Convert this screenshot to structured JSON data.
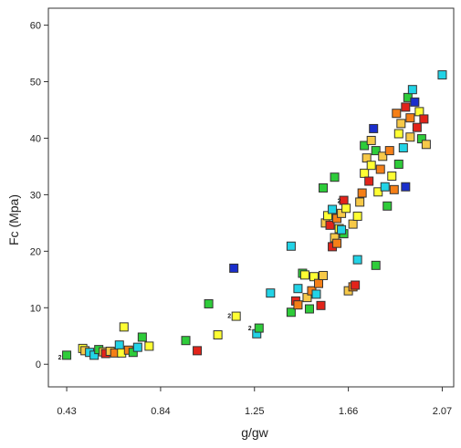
{
  "chart_data": {
    "type": "scatter",
    "xlabel": "g/gw",
    "ylabel": "Fc (Mpa)",
    "xlim": [
      0.35,
      2.12
    ],
    "ylim": [
      -4,
      63
    ],
    "xticks": [
      "0.43",
      "0.84",
      "1.25",
      "1.66",
      "2.07"
    ],
    "yticks": [
      "0",
      "10",
      "20",
      "30",
      "40",
      "50",
      "60"
    ],
    "grid": false,
    "legend": "none",
    "color_scale": [
      "#1a2ecc",
      "#22d3e6",
      "#2ecc3a",
      "#ffff33",
      "#f7c948",
      "#f57f17",
      "#e2231a"
    ],
    "points": [
      {
        "x": 0.43,
        "y": 1.6,
        "c": 2
      },
      {
        "x": 0.5,
        "y": 2.8,
        "c": 3
      },
      {
        "x": 0.51,
        "y": 2.4,
        "c": 4
      },
      {
        "x": 0.53,
        "y": 2.1,
        "c": 1
      },
      {
        "x": 0.55,
        "y": 1.6,
        "c": 1
      },
      {
        "x": 0.57,
        "y": 2.6,
        "c": 2
      },
      {
        "x": 0.59,
        "y": 2.2,
        "c": 4
      },
      {
        "x": 0.6,
        "y": 1.9,
        "c": 6
      },
      {
        "x": 0.62,
        "y": 2.3,
        "c": 4
      },
      {
        "x": 0.64,
        "y": 2.0,
        "c": 5
      },
      {
        "x": 0.66,
        "y": 3.4,
        "c": 1
      },
      {
        "x": 0.67,
        "y": 2.0,
        "c": 3
      },
      {
        "x": 0.68,
        "y": 6.6,
        "c": 3
      },
      {
        "x": 0.7,
        "y": 2.5,
        "c": 5
      },
      {
        "x": 0.72,
        "y": 2.1,
        "c": 2
      },
      {
        "x": 0.74,
        "y": 3.0,
        "c": 1
      },
      {
        "x": 0.76,
        "y": 4.8,
        "c": 2
      },
      {
        "x": 0.79,
        "y": 3.2,
        "c": 3
      },
      {
        "x": 0.95,
        "y": 4.2,
        "c": 2
      },
      {
        "x": 1.0,
        "y": 2.4,
        "c": 6
      },
      {
        "x": 1.05,
        "y": 10.7,
        "c": 2
      },
      {
        "x": 1.09,
        "y": 5.2,
        "c": 3
      },
      {
        "x": 1.16,
        "y": 17.0,
        "c": 0
      },
      {
        "x": 1.17,
        "y": 8.5,
        "c": 3
      },
      {
        "x": 1.26,
        "y": 5.4,
        "c": 1
      },
      {
        "x": 1.27,
        "y": 6.4,
        "c": 2
      },
      {
        "x": 1.32,
        "y": 12.6,
        "c": 1
      },
      {
        "x": 1.41,
        "y": 20.9,
        "c": 1
      },
      {
        "x": 1.41,
        "y": 9.2,
        "c": 2
      },
      {
        "x": 1.43,
        "y": 11.2,
        "c": 6
      },
      {
        "x": 1.44,
        "y": 13.4,
        "c": 1
      },
      {
        "x": 1.44,
        "y": 10.5,
        "c": 5
      },
      {
        "x": 1.46,
        "y": 16.1,
        "c": 2
      },
      {
        "x": 1.47,
        "y": 15.8,
        "c": 3
      },
      {
        "x": 1.48,
        "y": 11.8,
        "c": 4
      },
      {
        "x": 1.49,
        "y": 9.8,
        "c": 2
      },
      {
        "x": 1.5,
        "y": 13.0,
        "c": 5
      },
      {
        "x": 1.51,
        "y": 15.5,
        "c": 3
      },
      {
        "x": 1.52,
        "y": 12.4,
        "c": 1
      },
      {
        "x": 1.53,
        "y": 14.3,
        "c": 5
      },
      {
        "x": 1.54,
        "y": 10.4,
        "c": 6
      },
      {
        "x": 1.55,
        "y": 31.2,
        "c": 2
      },
      {
        "x": 1.55,
        "y": 15.7,
        "c": 4
      },
      {
        "x": 1.56,
        "y": 25.0,
        "c": 4
      },
      {
        "x": 1.57,
        "y": 26.3,
        "c": 3
      },
      {
        "x": 1.58,
        "y": 24.6,
        "c": 6
      },
      {
        "x": 1.59,
        "y": 27.4,
        "c": 1
      },
      {
        "x": 1.6,
        "y": 33.1,
        "c": 2
      },
      {
        "x": 1.6,
        "y": 22.4,
        "c": 4
      },
      {
        "x": 1.61,
        "y": 25.8,
        "c": 5
      },
      {
        "x": 1.62,
        "y": 24.0,
        "c": 3
      },
      {
        "x": 1.63,
        "y": 26.7,
        "c": 4
      },
      {
        "x": 1.64,
        "y": 29.0,
        "c": 6
      },
      {
        "x": 1.64,
        "y": 23.1,
        "c": 2
      },
      {
        "x": 1.65,
        "y": 27.6,
        "c": 3
      },
      {
        "x": 1.59,
        "y": 20.8,
        "c": 6
      },
      {
        "x": 1.61,
        "y": 21.4,
        "c": 5
      },
      {
        "x": 1.63,
        "y": 23.8,
        "c": 1
      },
      {
        "x": 1.66,
        "y": 13.0,
        "c": 4
      },
      {
        "x": 1.68,
        "y": 13.7,
        "c": 5
      },
      {
        "x": 1.69,
        "y": 14.0,
        "c": 6
      },
      {
        "x": 1.7,
        "y": 18.5,
        "c": 1
      },
      {
        "x": 1.68,
        "y": 24.8,
        "c": 4
      },
      {
        "x": 1.7,
        "y": 26.2,
        "c": 3
      },
      {
        "x": 1.71,
        "y": 28.7,
        "c": 4
      },
      {
        "x": 1.72,
        "y": 30.3,
        "c": 5
      },
      {
        "x": 1.73,
        "y": 33.8,
        "c": 3
      },
      {
        "x": 1.73,
        "y": 38.7,
        "c": 2
      },
      {
        "x": 1.74,
        "y": 36.5,
        "c": 4
      },
      {
        "x": 1.75,
        "y": 32.4,
        "c": 6
      },
      {
        "x": 1.76,
        "y": 35.2,
        "c": 3
      },
      {
        "x": 1.76,
        "y": 39.6,
        "c": 4
      },
      {
        "x": 1.77,
        "y": 41.7,
        "c": 0
      },
      {
        "x": 1.78,
        "y": 37.8,
        "c": 2
      },
      {
        "x": 1.78,
        "y": 17.5,
        "c": 2
      },
      {
        "x": 1.79,
        "y": 30.5,
        "c": 3
      },
      {
        "x": 1.8,
        "y": 34.5,
        "c": 5
      },
      {
        "x": 1.81,
        "y": 36.8,
        "c": 4
      },
      {
        "x": 1.82,
        "y": 31.4,
        "c": 1
      },
      {
        "x": 1.83,
        "y": 28.0,
        "c": 2
      },
      {
        "x": 1.84,
        "y": 37.8,
        "c": 5
      },
      {
        "x": 1.85,
        "y": 33.3,
        "c": 3
      },
      {
        "x": 1.86,
        "y": 30.9,
        "c": 5
      },
      {
        "x": 1.87,
        "y": 44.4,
        "c": 5
      },
      {
        "x": 1.88,
        "y": 40.8,
        "c": 3
      },
      {
        "x": 1.88,
        "y": 35.4,
        "c": 2
      },
      {
        "x": 1.89,
        "y": 42.6,
        "c": 4
      },
      {
        "x": 1.9,
        "y": 38.3,
        "c": 1
      },
      {
        "x": 1.91,
        "y": 45.5,
        "c": 6
      },
      {
        "x": 1.91,
        "y": 31.4,
        "c": 0
      },
      {
        "x": 1.92,
        "y": 47.2,
        "c": 2
      },
      {
        "x": 1.93,
        "y": 43.6,
        "c": 5
      },
      {
        "x": 1.93,
        "y": 40.2,
        "c": 4
      },
      {
        "x": 1.94,
        "y": 48.6,
        "c": 1
      },
      {
        "x": 1.95,
        "y": 46.4,
        "c": 0
      },
      {
        "x": 1.96,
        "y": 41.9,
        "c": 6
      },
      {
        "x": 1.97,
        "y": 44.7,
        "c": 3
      },
      {
        "x": 1.98,
        "y": 39.9,
        "c": 2
      },
      {
        "x": 1.99,
        "y": 43.4,
        "c": 6
      },
      {
        "x": 2.0,
        "y": 38.9,
        "c": 4
      },
      {
        "x": 2.07,
        "y": 51.2,
        "c": 1
      }
    ],
    "annotations": [
      {
        "text": "2",
        "x": 0.4,
        "y": 1.3
      },
      {
        "text": "2",
        "x": 1.14,
        "y": 8.7
      },
      {
        "text": "2",
        "x": 1.23,
        "y": 6.5
      },
      {
        "text": "2",
        "x": 1.62,
        "y": 29.0
      }
    ]
  }
}
